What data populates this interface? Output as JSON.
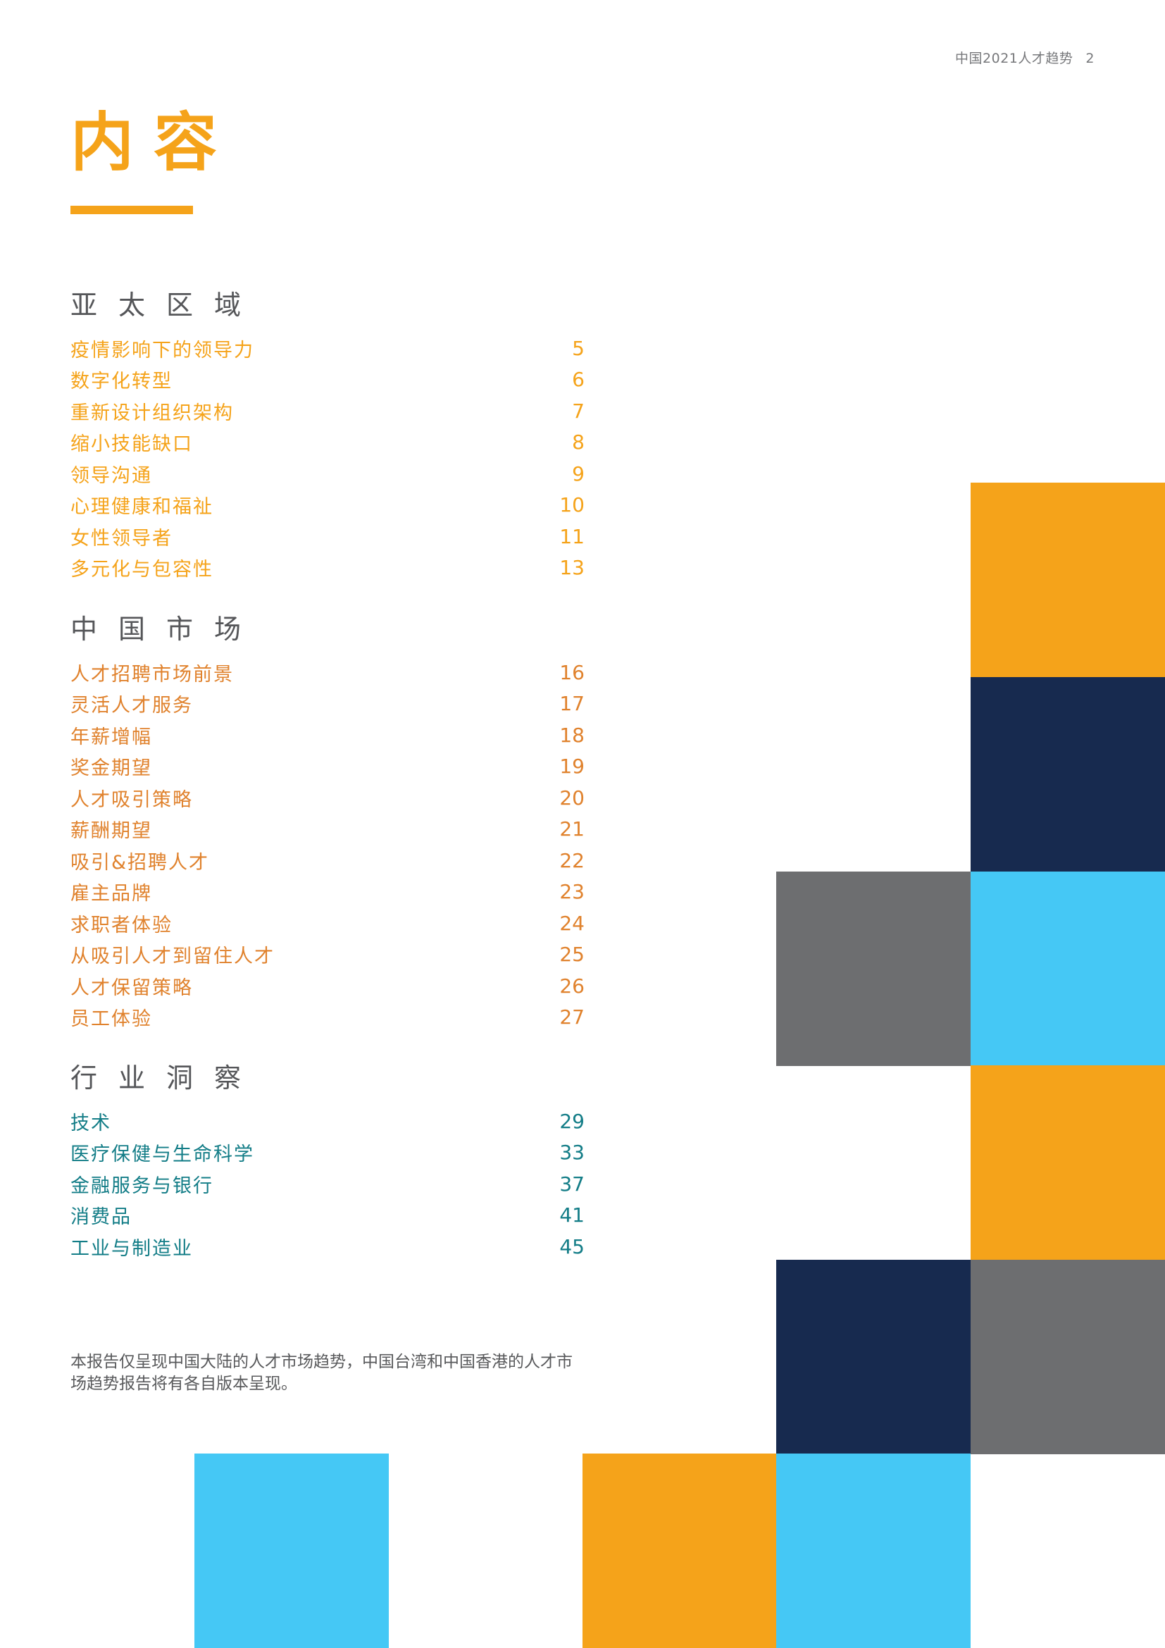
{
  "header": {
    "running_title": "中国2021人才趋势",
    "page_number": "2"
  },
  "title": "内容",
  "sections": [
    {
      "heading": "亚太区域",
      "color": "#f5a31a",
      "entries": [
        {
          "label": "疫情影响下的领导力",
          "page": "5"
        },
        {
          "label": "数字化转型",
          "page": "6"
        },
        {
          "label": "重新设计组织架构",
          "page": "7"
        },
        {
          "label": "缩小技能缺口",
          "page": "8"
        },
        {
          "label": "领导沟通",
          "page": "9"
        },
        {
          "label": "心理健康和福祉",
          "page": "10"
        },
        {
          "label": "女性领导者",
          "page": "11"
        },
        {
          "label": "多元化与包容性",
          "page": "13"
        }
      ]
    },
    {
      "heading": "中国市场",
      "color": "#e0822d",
      "entries": [
        {
          "label": "人才招聘市场前景",
          "page": "16"
        },
        {
          "label": "灵活人才服务",
          "page": "17"
        },
        {
          "label": "年薪增幅",
          "page": "18"
        },
        {
          "label": "奖金期望",
          "page": "19"
        },
        {
          "label": "人才吸引策略",
          "page": "20"
        },
        {
          "label": "薪酬期望",
          "page": "21"
        },
        {
          "label": "吸引&招聘人才",
          "page": "22"
        },
        {
          "label": "雇主品牌",
          "page": "23"
        },
        {
          "label": "求职者体验",
          "page": "24"
        },
        {
          "label": "从吸引人才到留住人才",
          "page": "25"
        },
        {
          "label": "人才保留策略",
          "page": "26"
        },
        {
          "label": "员工体验",
          "page": "27"
        }
      ]
    },
    {
      "heading": "行业洞察",
      "color": "#137d87",
      "entries": [
        {
          "label": "技术",
          "page": "29"
        },
        {
          "label": "医疗保健与生命科学",
          "page": "33"
        },
        {
          "label": "金融服务与银行",
          "page": "37"
        },
        {
          "label": "消费品",
          "page": "41"
        },
        {
          "label": "工业与制造业",
          "page": "45"
        }
      ]
    }
  ],
  "note": "本报告仅呈现中国大陆的人才市场趋势，中国台湾和中国香港的人才市场趋势报告将有各自版本呈现。",
  "palette": {
    "accent": "#f5a31a",
    "orange": "#f5a31a",
    "navy": "#172a4f",
    "sky": "#45c8f5",
    "gray": "#6d6e70"
  }
}
